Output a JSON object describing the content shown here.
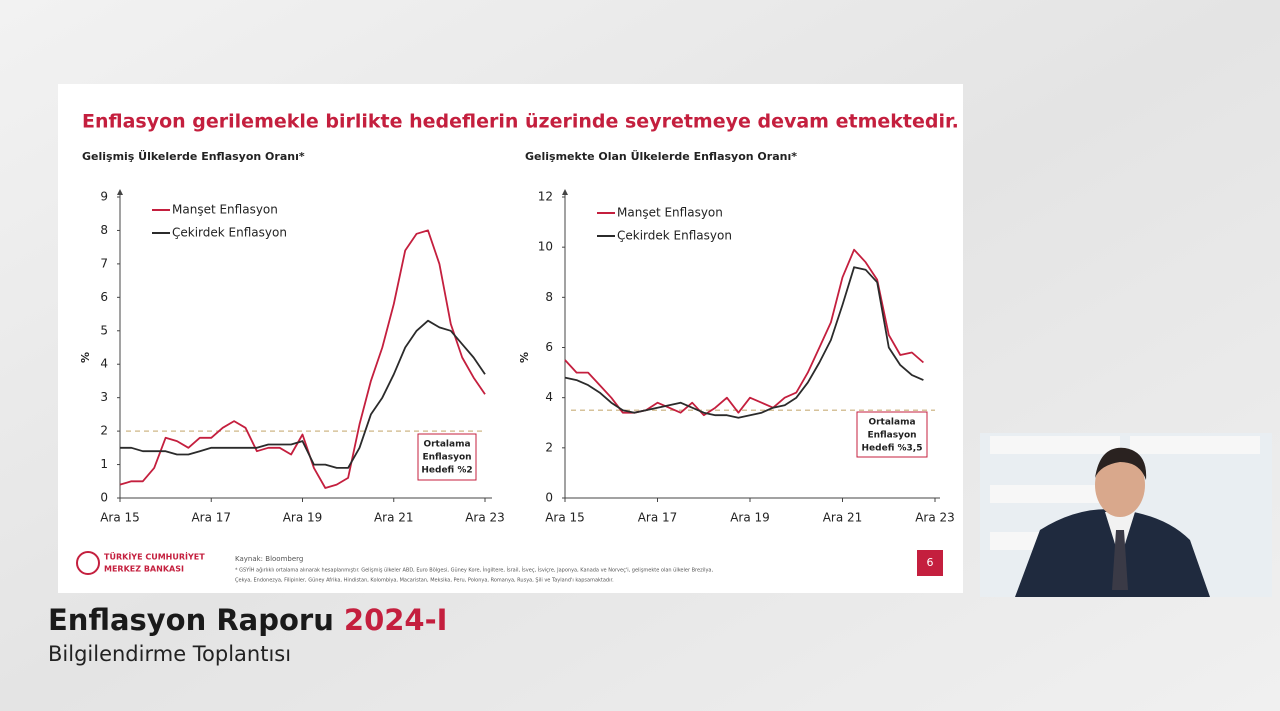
{
  "slide": {
    "title": "Enflasyon gerilemekle birlikte hedeflerin üzerinde seyretmeye devam etmektedir.",
    "logo_lines": [
      "TÜRKİYE CUMHURİYET",
      "MERKEZ BANKASI"
    ],
    "source": "Kaynak: Bloomberg",
    "footnote_lines": [
      "* GSYİH ağırlıklı ortalama alınarak hesaplanmıştır. Gelişmiş ülkeler ABD, Euro Bölgesi, Güney Kore, İngiltere, İsrail, İsveç, İsviçre, Japonya, Kanada ve Norveç'i, gelişmekte olan ülkeler Brezilya,",
      "Çekya, Endonezya, Filipinler, Güney Afrika, Hindistan, Kolombiya, Macaristan, Meksika, Peru, Polonya, Romanya, Rusya, Şili ve Tayland'ı kapsamaktadır."
    ],
    "page_number": "6"
  },
  "banner": {
    "title": "Enflasyon Raporu",
    "edition": "2024-I",
    "subtitle": "Bilgilendirme Toplantısı"
  },
  "chart_data": [
    {
      "type": "line",
      "title": "Gelişmiş Ülkelerde Enflasyon Oranı*",
      "ylabel": "%",
      "x": [
        2015.92,
        2016.17,
        2016.42,
        2016.67,
        2016.92,
        2017.17,
        2017.42,
        2017.67,
        2017.92,
        2018.17,
        2018.42,
        2018.67,
        2018.92,
        2019.17,
        2019.42,
        2019.67,
        2019.92,
        2020.17,
        2020.42,
        2020.67,
        2020.92,
        2021.17,
        2021.42,
        2021.67,
        2021.92,
        2022.17,
        2022.42,
        2022.67,
        2022.92,
        2023.17,
        2023.42,
        2023.67,
        2023.92
      ],
      "xlim": [
        2015.92,
        2023.92
      ],
      "xticks": [
        {
          "value": 2015.92,
          "label": "Ara 15"
        },
        {
          "value": 2017.92,
          "label": "Ara 17"
        },
        {
          "value": 2019.92,
          "label": "Ara 19"
        },
        {
          "value": 2021.92,
          "label": "Ara 21"
        },
        {
          "value": 2023.92,
          "label": "Ara 23"
        }
      ],
      "ylim": [
        0,
        9
      ],
      "yticks": [
        0,
        1,
        2,
        3,
        4,
        5,
        6,
        7,
        8,
        9
      ],
      "series": [
        {
          "name": "Manşet Enflasyon",
          "color": "#c41f3e",
          "values": [
            0.4,
            0.5,
            0.5,
            0.9,
            1.8,
            1.7,
            1.5,
            1.8,
            1.8,
            2.1,
            2.3,
            2.1,
            1.4,
            1.5,
            1.5,
            1.3,
            1.9,
            0.9,
            0.3,
            0.4,
            0.6,
            2.2,
            3.5,
            4.5,
            5.8,
            7.4,
            7.9,
            8.0,
            7.0,
            5.2,
            4.2,
            3.6,
            3.1
          ]
        },
        {
          "name": "Çekirdek Enflasyon",
          "color": "#2b2b2b",
          "values": [
            1.5,
            1.5,
            1.4,
            1.4,
            1.4,
            1.3,
            1.3,
            1.4,
            1.5,
            1.5,
            1.5,
            1.5,
            1.5,
            1.6,
            1.6,
            1.6,
            1.7,
            1.0,
            1.0,
            0.9,
            0.9,
            1.5,
            2.5,
            3.0,
            3.7,
            4.5,
            5.0,
            5.3,
            5.1,
            5.0,
            4.6,
            4.2,
            3.7
          ]
        }
      ],
      "target": 2,
      "annotation_lines": [
        "Ortalama",
        "Enflasyon",
        "Hedefi %2"
      ]
    },
    {
      "type": "line",
      "title": "Gelişmekte Olan Ülkelerde Enflasyon Oranı*",
      "ylabel": "%",
      "x": [
        2015.92,
        2016.17,
        2016.42,
        2016.67,
        2016.92,
        2017.17,
        2017.42,
        2017.67,
        2017.92,
        2018.17,
        2018.42,
        2018.67,
        2018.92,
        2019.17,
        2019.42,
        2019.67,
        2019.92,
        2020.17,
        2020.42,
        2020.67,
        2020.92,
        2021.17,
        2021.42,
        2021.67,
        2021.92,
        2022.17,
        2022.42,
        2022.67,
        2022.92,
        2023.17,
        2023.42,
        2023.67,
        2023.92
      ],
      "xlim": [
        2015.92,
        2023.92
      ],
      "xticks": [
        {
          "value": 2015.92,
          "label": "Ara 15"
        },
        {
          "value": 2017.92,
          "label": "Ara 17"
        },
        {
          "value": 2019.92,
          "label": "Ara 19"
        },
        {
          "value": 2021.92,
          "label": "Ara 21"
        },
        {
          "value": 2023.92,
          "label": "Ara 23"
        }
      ],
      "ylim": [
        0,
        12
      ],
      "yticks": [
        0,
        2,
        4,
        6,
        8,
        10,
        12
      ],
      "series": [
        {
          "name": "Manşet Enflasyon",
          "color": "#c41f3e",
          "values": [
            5.5,
            5.0,
            5.0,
            4.5,
            4.0,
            3.4,
            3.4,
            3.5,
            3.8,
            3.6,
            3.4,
            3.8,
            3.3,
            3.6,
            4.0,
            3.4,
            4.0,
            3.8,
            3.6,
            4.0,
            4.2,
            5.0,
            6.0,
            7.0,
            8.8,
            9.9,
            9.4,
            8.7,
            6.5,
            5.7,
            5.8,
            5.4,
            null
          ]
        },
        {
          "name": "Çekirdek Enflasyon",
          "color": "#2b2b2b",
          "values": [
            4.8,
            4.7,
            4.5,
            4.2,
            3.8,
            3.5,
            3.4,
            3.5,
            3.6,
            3.7,
            3.8,
            3.6,
            3.4,
            3.3,
            3.3,
            3.2,
            3.3,
            3.4,
            3.6,
            3.7,
            4.0,
            4.6,
            5.4,
            6.3,
            7.7,
            9.2,
            9.1,
            8.6,
            6.0,
            5.3,
            4.9,
            4.7,
            null
          ]
        }
      ],
      "target": 3.5,
      "annotation_lines": [
        "Ortalama",
        "Enflasyon",
        "Hedefi %3,5"
      ]
    }
  ]
}
